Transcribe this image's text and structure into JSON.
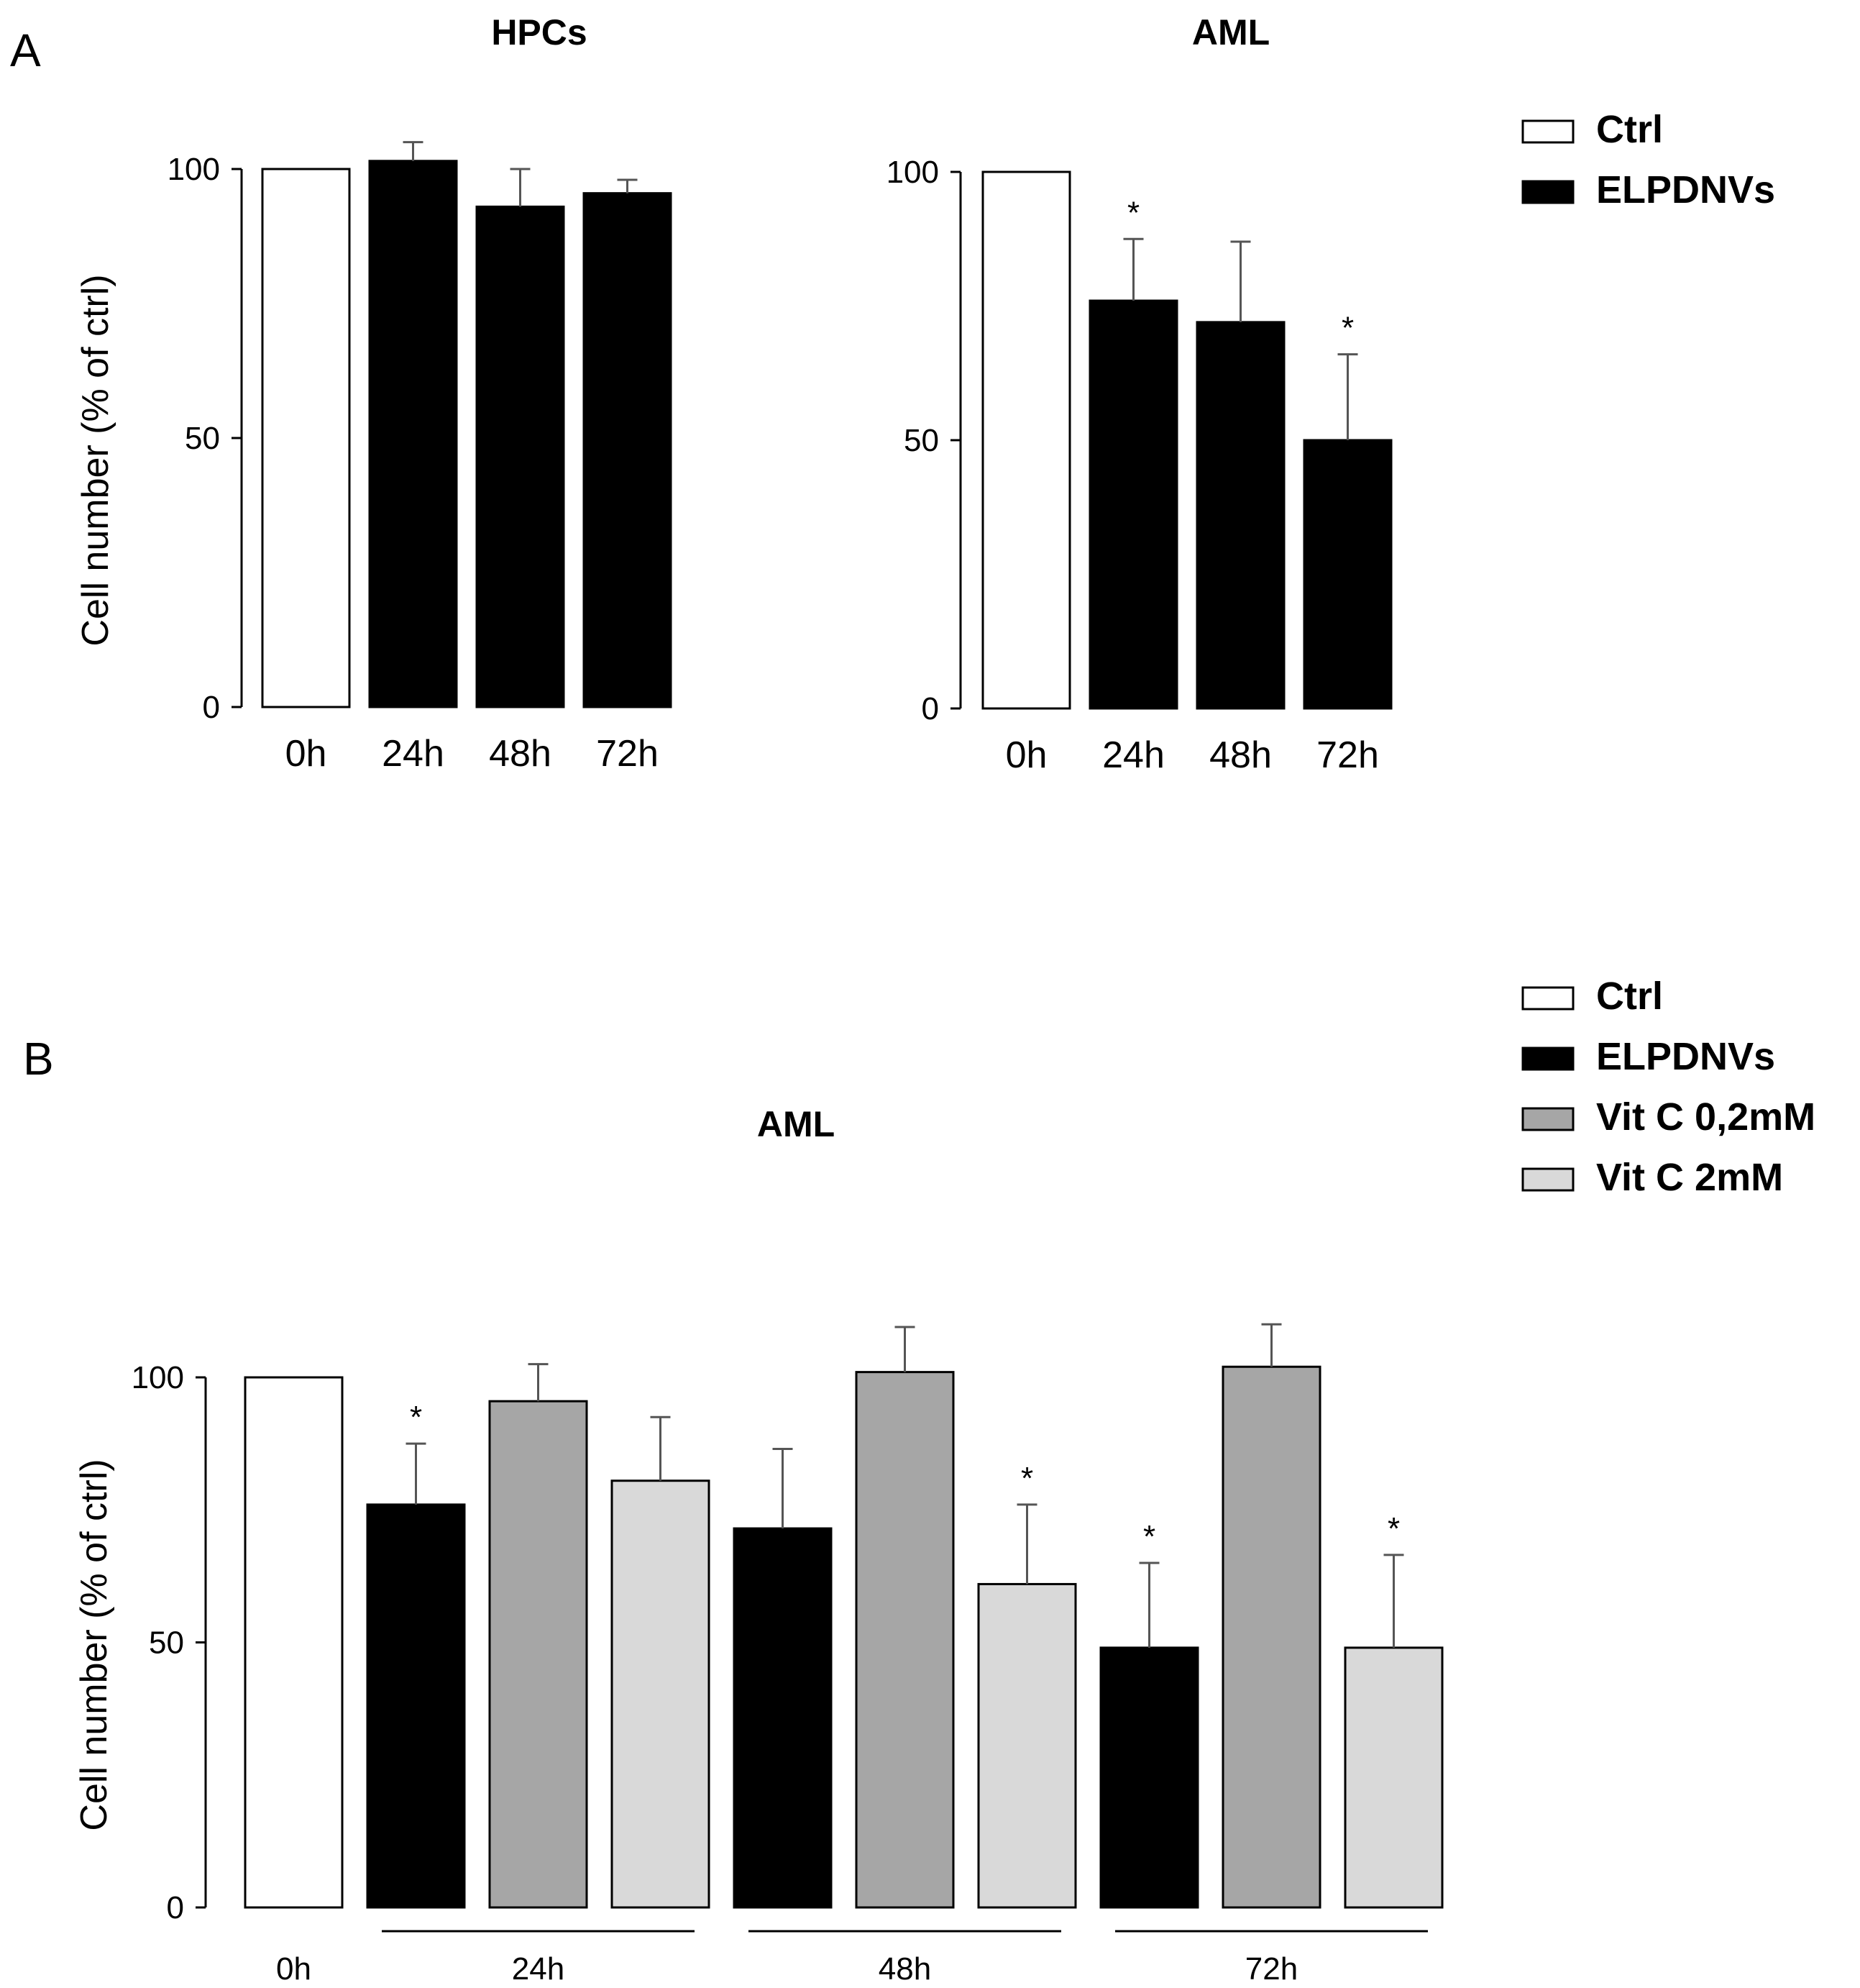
{
  "figure": {
    "panel_labels": [
      "A",
      "B"
    ]
  },
  "chart_data": [
    {
      "type": "bar",
      "id": "A-HPCs",
      "title": "HPCs",
      "ylabel": "Cell number (% of ctrl)",
      "xlabel": "",
      "ylim": [
        0,
        100
      ],
      "yticks": [
        "0",
        "50",
        "100"
      ],
      "categories": [
        "0h",
        "24h",
        "48h",
        "72h"
      ],
      "values": [
        100,
        101.5,
        93,
        95.5
      ],
      "errors": [
        0,
        3.5,
        7,
        2.5
      ],
      "series_of_bar": [
        "Ctrl",
        "ELPDNVs",
        "ELPDNVs",
        "ELPDNVs"
      ],
      "significant": [
        false,
        false,
        false,
        false
      ],
      "significance_mark": "*"
    },
    {
      "type": "bar",
      "id": "A-AML",
      "title": "AML",
      "ylabel": "",
      "xlabel": "",
      "ylim": [
        0,
        100
      ],
      "yticks": [
        "0",
        "50",
        "100"
      ],
      "categories": [
        "0h",
        "24h",
        "48h",
        "72h"
      ],
      "values": [
        100,
        76,
        72,
        50
      ],
      "errors": [
        0,
        11.5,
        15,
        16
      ],
      "series_of_bar": [
        "Ctrl",
        "ELPDNVs",
        "ELPDNVs",
        "ELPDNVs"
      ],
      "significant": [
        false,
        true,
        false,
        true
      ],
      "significance_mark": "*"
    },
    {
      "type": "bar",
      "id": "B-AML",
      "title": "AML",
      "ylabel": "Cell number (% of ctrl)",
      "xlabel": "",
      "ylim": [
        0,
        100
      ],
      "yticks": [
        "0",
        "50",
        "100"
      ],
      "group_labels": [
        "0h",
        "24h",
        "48h",
        "72h"
      ],
      "bars": [
        {
          "group": "0h",
          "series": "Ctrl",
          "value": 100,
          "error": 0,
          "significant": false
        },
        {
          "group": "24h",
          "series": "ELPDNVs",
          "value": 76,
          "error": 11.5,
          "significant": true
        },
        {
          "group": "24h",
          "series": "Vit C 0,2mM",
          "value": 95.5,
          "error": 7,
          "significant": false
        },
        {
          "group": "24h",
          "series": "Vit C 2mM",
          "value": 80.5,
          "error": 12,
          "significant": false
        },
        {
          "group": "48h",
          "series": "ELPDNVs",
          "value": 71.5,
          "error": 15,
          "significant": false
        },
        {
          "group": "48h",
          "series": "Vit C 0,2mM",
          "value": 101,
          "error": 8.5,
          "significant": false
        },
        {
          "group": "48h",
          "series": "Vit C 2mM",
          "value": 61,
          "error": 15,
          "significant": true
        },
        {
          "group": "72h",
          "series": "ELPDNVs",
          "value": 49,
          "error": 16,
          "significant": true
        },
        {
          "group": "72h",
          "series": "Vit C 0,2mM",
          "value": 102,
          "error": 8,
          "significant": false
        },
        {
          "group": "72h",
          "series": "Vit C 2mM",
          "value": 49,
          "error": 17.5,
          "significant": true
        }
      ],
      "significance_mark": "*"
    }
  ],
  "legends": {
    "A": [
      {
        "label": "Ctrl",
        "color": "#ffffff"
      },
      {
        "label": "ELPDNVs",
        "color": "#000000"
      }
    ],
    "B": [
      {
        "label": "Ctrl",
        "color": "#ffffff"
      },
      {
        "label": "ELPDNVs",
        "color": "#000000"
      },
      {
        "label": "Vit C 0,2mM",
        "color": "#a6a6a6"
      },
      {
        "label": "Vit C 2mM",
        "color": "#d9d9d9"
      }
    ]
  }
}
